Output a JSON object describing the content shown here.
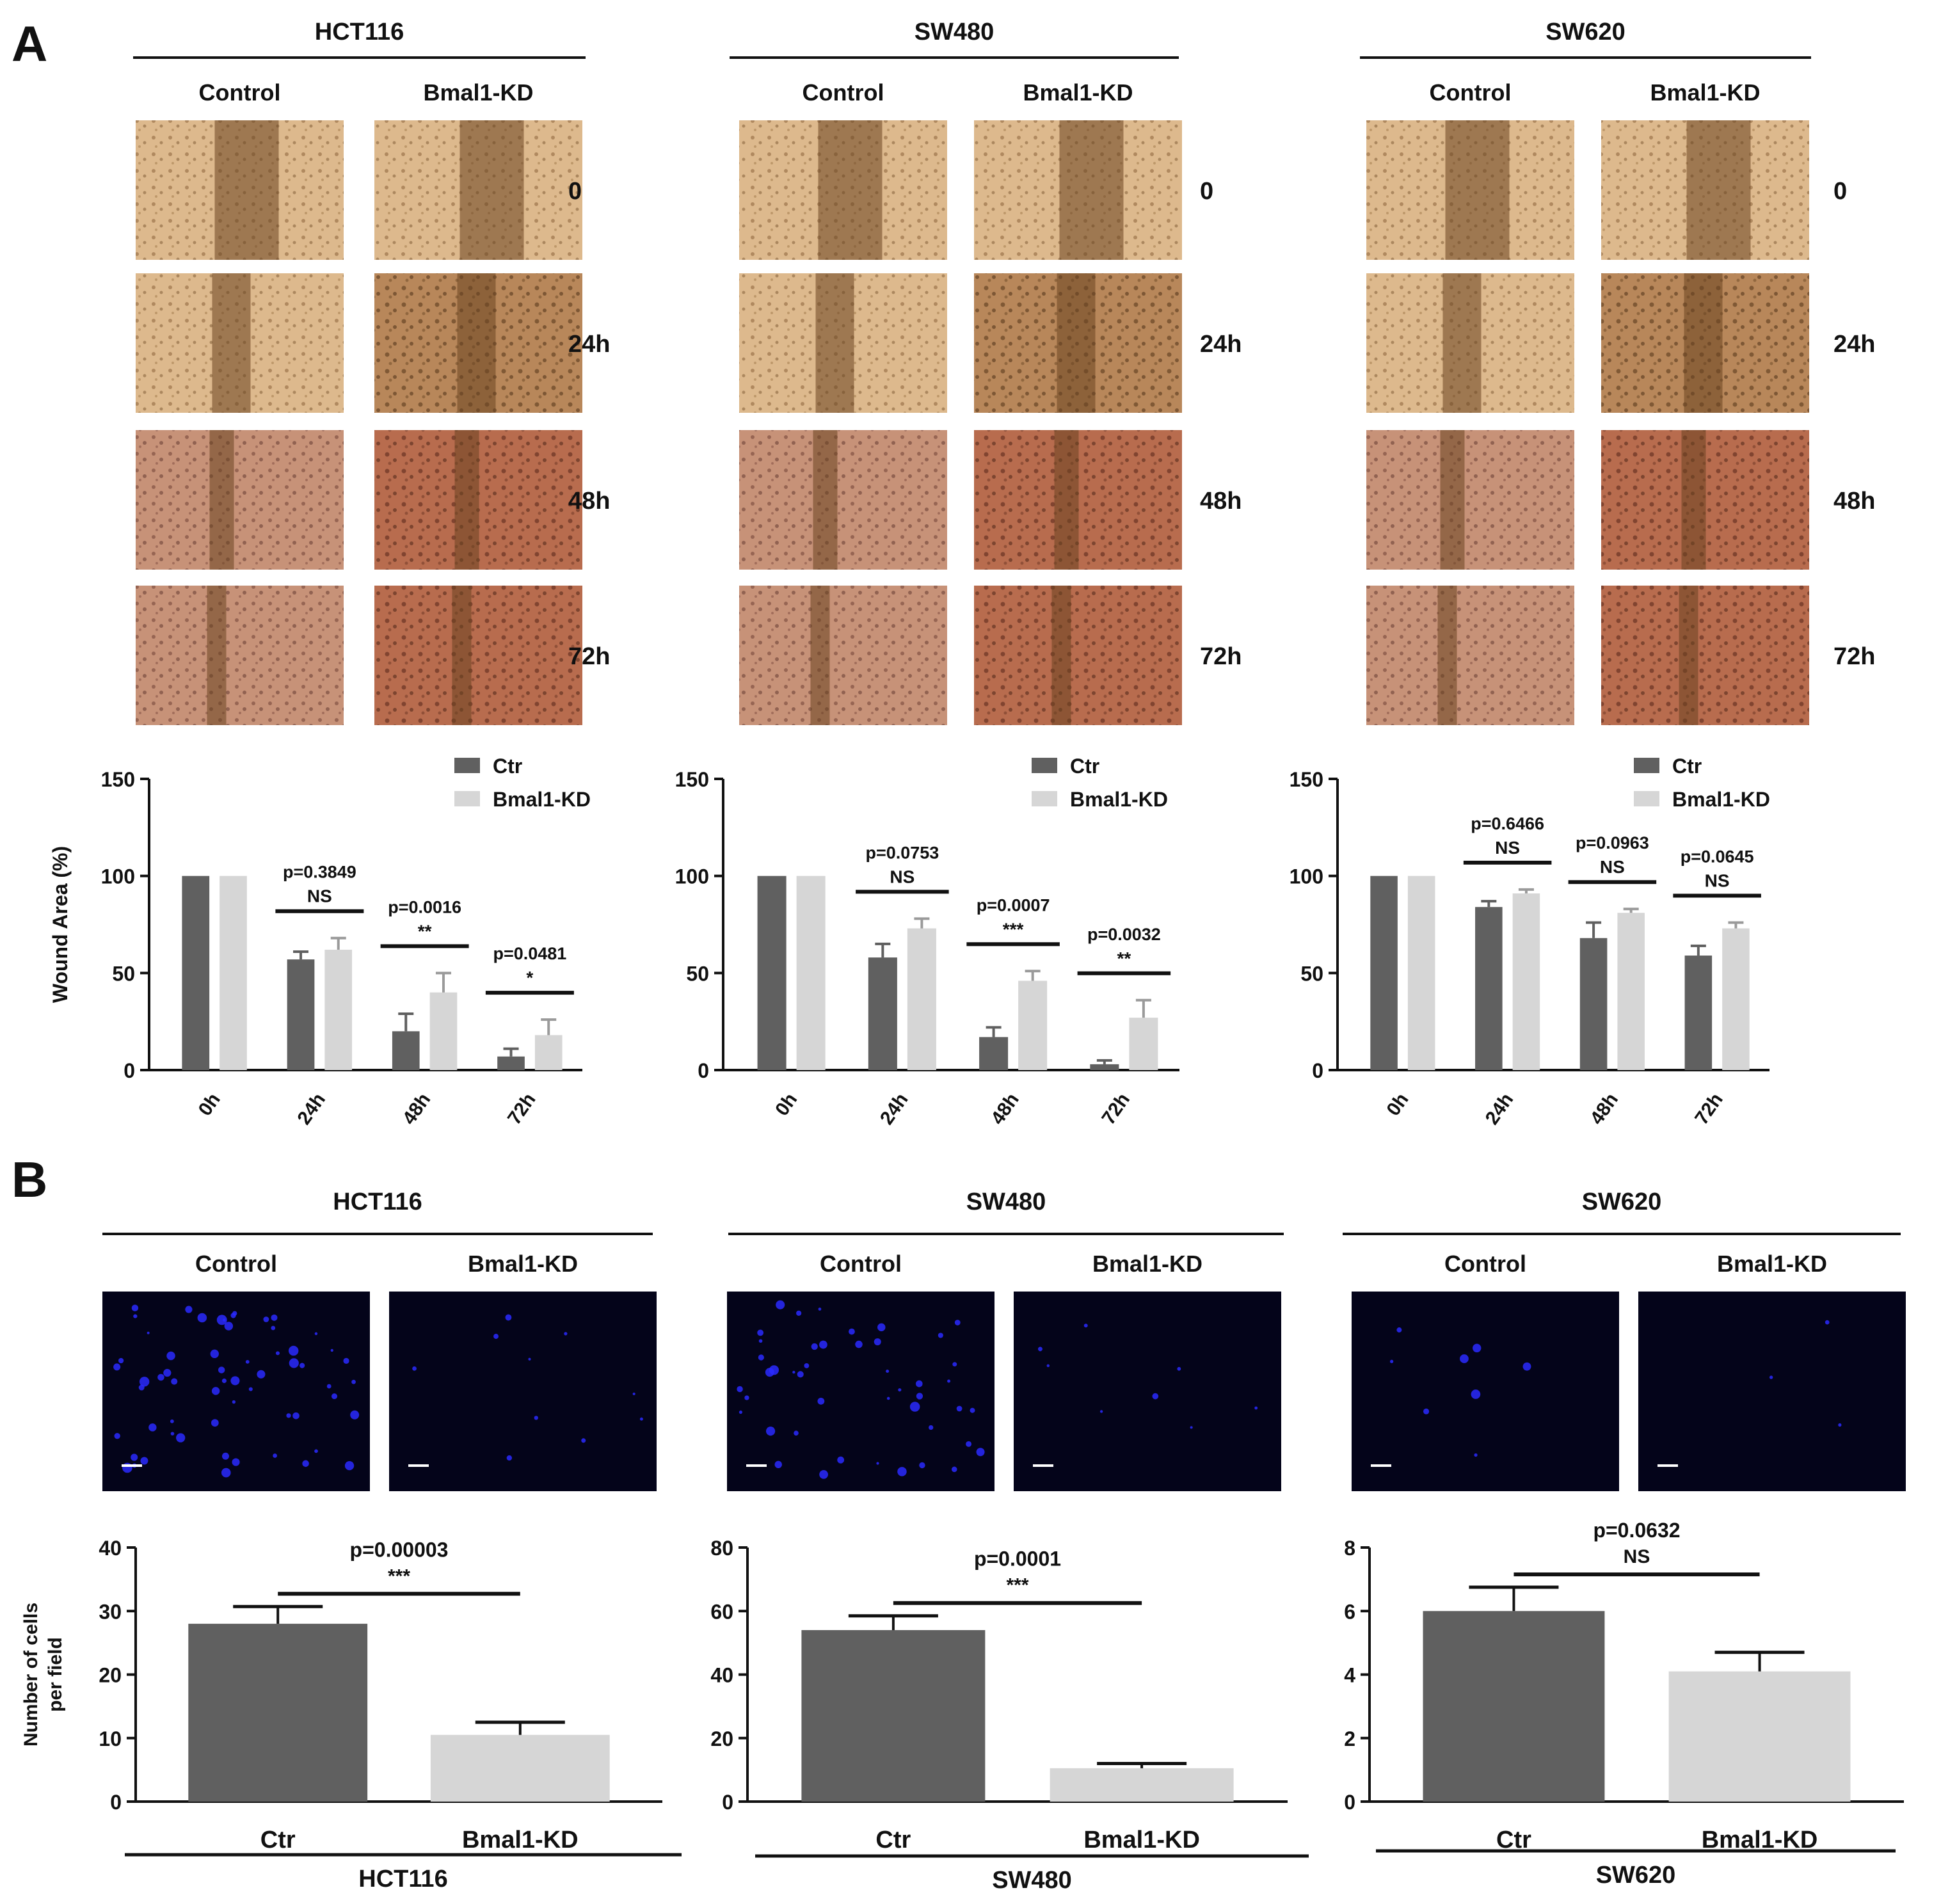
{
  "panel_a_letter": "A",
  "panel_b_letter": "B",
  "colors": {
    "ctr": "#606060",
    "kd": "#d6d6d6",
    "wound_light": "#d9b58a",
    "wound_dark": "#6a4420",
    "fluor_bg": "#04041a",
    "fluor_cell": "#2a2aff"
  },
  "panel_a": {
    "condition_labels": [
      "Control",
      "Bmal1-KD"
    ],
    "timepoints": [
      "0",
      "24h",
      "48h",
      "72h"
    ],
    "y_axis_label": "Wound Area (%)",
    "cell_lines": [
      {
        "name": "HCT116"
      },
      {
        "name": "SW480"
      },
      {
        "name": "SW620"
      }
    ]
  },
  "panel_b": {
    "condition_labels": [
      "Control",
      "Bmal1-KD"
    ],
    "y_axis_label_line1": "Number of cells",
    "y_axis_label_line2": "per field",
    "cell_lines": [
      {
        "name": "HCT116",
        "footer": "HCT116",
        "cell_density": "high"
      },
      {
        "name": "SW480",
        "footer": "SW480",
        "cell_density": "medium"
      },
      {
        "name": "SW620",
        "footer": "SW620",
        "cell_density": "low"
      }
    ]
  },
  "chart_data": [
    {
      "type": "bar",
      "title": "HCT116",
      "xlabel": "",
      "ylabel": "Wound Area (%)",
      "categories": [
        "0h",
        "24h",
        "48h",
        "72h"
      ],
      "ylim": [
        0,
        150
      ],
      "yticks": [
        0,
        50,
        100,
        150
      ],
      "legend": [
        "Ctr",
        "Bmal1-KD"
      ],
      "legend_position": "top-right",
      "series": [
        {
          "name": "Ctr",
          "values": [
            100,
            57,
            20,
            7
          ],
          "errors": [
            0,
            4,
            9,
            4
          ]
        },
        {
          "name": "Bmal1-KD",
          "values": [
            100,
            62,
            40,
            18
          ],
          "errors": [
            0,
            6,
            10,
            8
          ]
        }
      ],
      "annotations": [
        {
          "category": "24h",
          "p": "p=0.3849",
          "sig": "NS"
        },
        {
          "category": "48h",
          "p": "p=0.0016",
          "sig": "**"
        },
        {
          "category": "72h",
          "p": "p=0.0481",
          "sig": "*"
        }
      ]
    },
    {
      "type": "bar",
      "title": "SW480",
      "xlabel": "",
      "ylabel": "",
      "categories": [
        "0h",
        "24h",
        "48h",
        "72h"
      ],
      "ylim": [
        0,
        150
      ],
      "yticks": [
        0,
        50,
        100,
        150
      ],
      "legend": [
        "Ctr",
        "Bmal1-KD"
      ],
      "legend_position": "top-right",
      "series": [
        {
          "name": "Ctr",
          "values": [
            100,
            58,
            17,
            3
          ],
          "errors": [
            0,
            7,
            5,
            2
          ]
        },
        {
          "name": "Bmal1-KD",
          "values": [
            100,
            73,
            46,
            27
          ],
          "errors": [
            0,
            5,
            5,
            9
          ]
        }
      ],
      "annotations": [
        {
          "category": "24h",
          "p": "p=0.0753",
          "sig": "NS"
        },
        {
          "category": "48h",
          "p": "p=0.0007",
          "sig": "***"
        },
        {
          "category": "72h",
          "p": "p=0.0032",
          "sig": "**"
        }
      ]
    },
    {
      "type": "bar",
      "title": "SW620",
      "xlabel": "",
      "ylabel": "",
      "categories": [
        "0h",
        "24h",
        "48h",
        "72h"
      ],
      "ylim": [
        0,
        150
      ],
      "yticks": [
        0,
        50,
        100,
        150
      ],
      "legend": [
        "Ctr",
        "Bmal1-KD"
      ],
      "legend_position": "top-right",
      "series": [
        {
          "name": "Ctr",
          "values": [
            100,
            84,
            68,
            59
          ],
          "errors": [
            0,
            3,
            8,
            5
          ]
        },
        {
          "name": "Bmal1-KD",
          "values": [
            100,
            91,
            81,
            73
          ],
          "errors": [
            0,
            2,
            2,
            3
          ]
        }
      ],
      "annotations": [
        {
          "category": "24h",
          "p": "p=0.6466",
          "sig": "NS"
        },
        {
          "category": "48h",
          "p": "p=0.0963",
          "sig": "NS"
        },
        {
          "category": "72h",
          "p": "p=0.0645",
          "sig": "NS"
        }
      ]
    },
    {
      "type": "bar",
      "title": "HCT116",
      "xlabel": "",
      "ylabel": "Number of cells per field",
      "categories": [
        "Ctr",
        "Bmal1-KD"
      ],
      "ylim": [
        0,
        40
      ],
      "yticks": [
        0,
        10,
        20,
        30,
        40
      ],
      "values": [
        28,
        10.5
      ],
      "errors": [
        2.7,
        2.0
      ],
      "annotations": [
        {
          "p": "p=0.00003",
          "sig": "***"
        }
      ]
    },
    {
      "type": "bar",
      "title": "SW480",
      "xlabel": "",
      "ylabel": "",
      "categories": [
        "Ctr",
        "Bmal1-KD"
      ],
      "ylim": [
        0,
        80
      ],
      "yticks": [
        0,
        20,
        40,
        60,
        80
      ],
      "values": [
        54,
        10.5
      ],
      "errors": [
        4.5,
        1.5
      ],
      "annotations": [
        {
          "p": "p=0.0001",
          "sig": "***"
        }
      ]
    },
    {
      "type": "bar",
      "title": "SW620",
      "xlabel": "",
      "ylabel": "",
      "categories": [
        "Ctr",
        "Bmal1-KD"
      ],
      "ylim": [
        0,
        8
      ],
      "yticks": [
        0,
        2,
        4,
        6,
        8
      ],
      "values": [
        6,
        4.1
      ],
      "errors": [
        0.75,
        0.6
      ],
      "annotations": [
        {
          "p": "p=0.0632",
          "sig": "NS"
        }
      ]
    }
  ]
}
